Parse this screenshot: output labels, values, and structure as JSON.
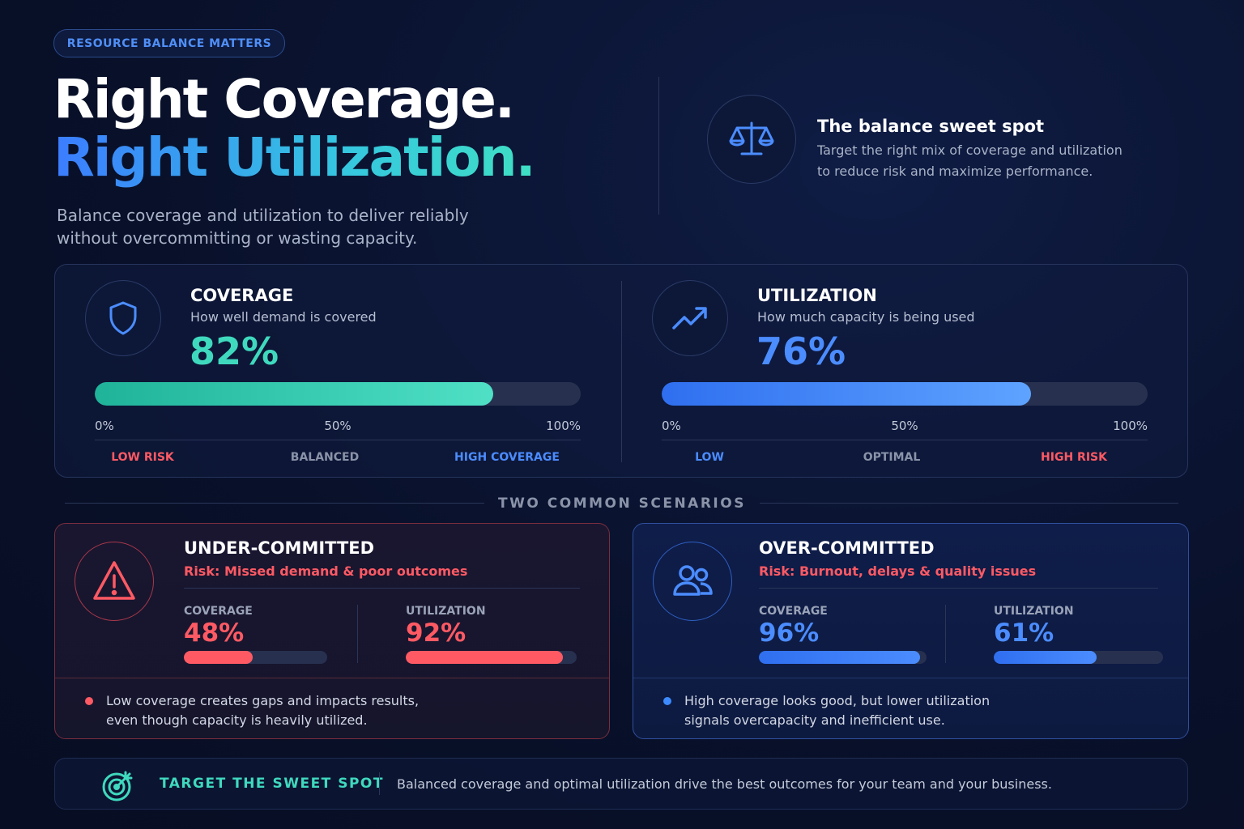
{
  "header": {
    "badge": "RESOURCE BALANCE MATTERS",
    "title_line1": "Right Coverage.",
    "title_line2": "Right Utilization.",
    "subtitle_lines": [
      "Balance coverage and utilization to deliver reliably",
      "without overcommitting or wasting capacity."
    ]
  },
  "sweet_spot": {
    "title": "The balance sweet spot",
    "text_lines": [
      "Target the right mix of coverage and utilization",
      "to reduce risk and maximize performance."
    ]
  },
  "metrics": [
    {
      "title": "COVERAGE",
      "subtitle": "How well demand is covered",
      "value": 82,
      "value_label": "82%",
      "ticks": [
        {
          "value": 0,
          "label": "0%"
        },
        {
          "value": 50,
          "label": "50%"
        },
        {
          "value": 100,
          "label": "100%"
        }
      ],
      "zones": [
        "LOW RISK",
        "BALANCED",
        "HIGH COVERAGE"
      ]
    },
    {
      "title": "UTILIZATION",
      "subtitle": "How much capacity is being used",
      "value": 76,
      "value_label": "76%",
      "ticks": [
        {
          "value": 0,
          "label": "0%"
        },
        {
          "value": 50,
          "label": "50%"
        },
        {
          "value": 100,
          "label": "100%"
        }
      ],
      "zones": [
        "LOW",
        "OPTIMAL",
        "HIGH RISK"
      ]
    }
  ],
  "scenarios_heading": "TWO COMMON SCENARIOS",
  "scenarios": [
    {
      "title": "UNDER-COMMITTED",
      "risk": "Risk: Missed demand & poor outcomes",
      "lim": [
        0,
        100
      ],
      "meters": [
        {
          "label": "COVERAGE",
          "value": 48,
          "value_label": "48%"
        },
        {
          "label": "UTILIZATION",
          "value": 92,
          "value_label": "92%"
        }
      ],
      "note_lines": [
        "Low coverage creates gaps and impacts results,",
        "even though capacity is heavily utilized."
      ]
    },
    {
      "title": "OVER-COMMITTED",
      "risk": "Risk: Burnout, delays & quality issues",
      "lim": [
        0,
        100
      ],
      "meters": [
        {
          "label": "COVERAGE",
          "value": 96,
          "value_label": "96%"
        },
        {
          "label": "UTILIZATION",
          "value": 61,
          "value_label": "61%"
        }
      ],
      "note_lines": [
        "High coverage looks good, but lower utilization",
        "signals overcapacity and inefficient use."
      ]
    }
  ],
  "footer": {
    "label": "TARGET THE SWEET SPOT",
    "text": "Balanced coverage and optimal utilization drive the best outcomes for your team and your business."
  }
}
